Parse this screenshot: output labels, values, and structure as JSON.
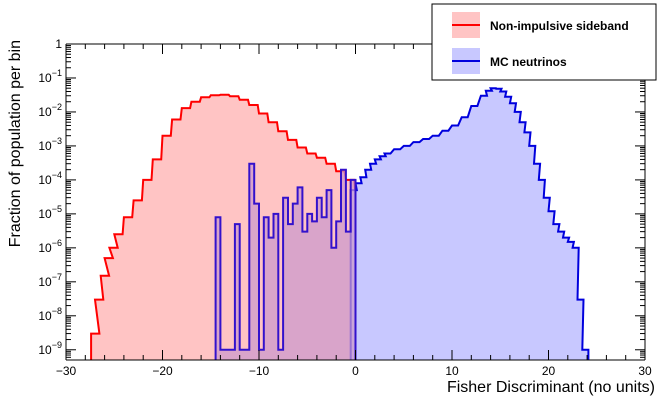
{
  "chart_data": {
    "type": "area",
    "xlabel": "Fisher Discriminant (no units)",
    "ylabel": "Fraction of population per bin",
    "xlim": [
      -30,
      30
    ],
    "ylim": [
      5e-10,
      1
    ],
    "yscale": "log",
    "x_ticks": [
      -30,
      -20,
      -10,
      0,
      10,
      20,
      30
    ],
    "x_tick_labels": [
      "−30",
      "−20",
      "−10",
      "0",
      "10",
      "20",
      "30"
    ],
    "y_ticks": [
      1e-09,
      1e-08,
      1e-07,
      1e-06,
      1e-05,
      0.0001,
      0.001,
      0.01,
      0.1,
      1
    ],
    "y_tick_labels": [
      {
        "base": "10",
        "exp": "−9"
      },
      {
        "base": "10",
        "exp": "−8"
      },
      {
        "base": "10",
        "exp": "−7"
      },
      {
        "base": "10",
        "exp": "−6"
      },
      {
        "base": "10",
        "exp": "−5"
      },
      {
        "base": "10",
        "exp": "−4"
      },
      {
        "base": "10",
        "exp": "−3"
      },
      {
        "base": "10",
        "exp": "−2"
      },
      {
        "base": "10",
        "exp": "−1"
      },
      {
        "base": "1",
        "exp": ""
      }
    ],
    "legend_position": "top-right",
    "series": [
      {
        "name": "Non-impulsive sideband",
        "color": "#ff0000",
        "fill": "#ffc4c4",
        "x": [
          -27.4,
          -27.0,
          -26.4,
          -26.0,
          -25.5,
          -25.0,
          -24.0,
          -23.0,
          -22.0,
          -21.0,
          -20.0,
          -19.0,
          -18.0,
          -17.0,
          -16.0,
          -15.0,
          -14.0,
          -13.0,
          -12.0,
          -11.0,
          -10.0,
          -9.0,
          -8.0,
          -7.0,
          -6.0,
          -5.0,
          -4.0,
          -3.0,
          -2.0,
          -1.0,
          0.0,
          1.0,
          2.0,
          3.0,
          4.0,
          4.5,
          5.0,
          5.5,
          6.0,
          6.2
        ],
        "y": [
          3e-09,
          3e-08,
          1.5e-07,
          5e-07,
          1e-06,
          2.5e-06,
          8e-06,
          2.5e-05,
          0.0001,
          0.0004,
          0.002,
          0.006,
          0.013,
          0.02,
          0.027,
          0.031,
          0.032,
          0.029,
          0.023,
          0.016,
          0.009,
          0.005,
          0.0027,
          0.0015,
          0.0009,
          0.0006,
          0.00045,
          0.0003,
          0.00018,
          0.0001,
          3.5e-05,
          8e-06,
          1.5e-06,
          3e-07,
          8e-08,
          4e-08,
          2e-08,
          1.2e-08,
          8e-09,
          8e-09
        ]
      },
      {
        "name": "MC neutrinos",
        "color": "#0000dd",
        "fill": "#c8c8ff",
        "x": [
          -0.5,
          0.0,
          0.5,
          1.0,
          1.5,
          2.0,
          2.5,
          3.0,
          4.0,
          5.0,
          6.0,
          7.0,
          8.0,
          9.0,
          10.0,
          11.0,
          12.0,
          13.0,
          13.5,
          14.0,
          14.5,
          15.0,
          15.5,
          16.0,
          16.5,
          17.0,
          17.5,
          18.0,
          18.5,
          19.0,
          19.5,
          20.0,
          20.5,
          21.0,
          21.5,
          22.0,
          22.5,
          23.0,
          23.5
        ],
        "y": [
          5e-05,
          8e-05,
          0.00012,
          0.0002,
          0.0003,
          0.0004,
          0.0005,
          0.0006,
          0.0008,
          0.001,
          0.0013,
          0.0016,
          0.002,
          0.0028,
          0.004,
          0.007,
          0.015,
          0.03,
          0.042,
          0.05,
          0.048,
          0.04,
          0.028,
          0.018,
          0.01,
          0.005,
          0.0025,
          0.001,
          0.0003,
          0.0001,
          3e-05,
          1.2e-05,
          5e-06,
          3e-06,
          2e-06,
          1.5e-06,
          1e-06,
          3e-08,
          1e-09
        ]
      },
      {
        "name": "",
        "color": "#3311cc",
        "fill": "#cc99cc",
        "x": [
          -14.5,
          -14.0,
          -13.5,
          -13.0,
          -12.5,
          -12.0,
          -11.5,
          -11.0,
          -10.5,
          -10.0,
          -9.5,
          -9.0,
          -8.5,
          -8.0,
          -7.5,
          -7.0,
          -6.5,
          -6.0,
          -5.5,
          -5.0,
          -4.5,
          -4.0,
          -3.5,
          -3.0,
          -2.5,
          -2.0,
          -1.5,
          -1.0,
          -0.5
        ],
        "y": [
          8e-06,
          1e-09,
          1e-09,
          1e-09,
          5e-06,
          1e-09,
          1e-09,
          0.0003,
          2e-05,
          1e-09,
          8e-06,
          2e-06,
          1e-05,
          1e-09,
          3e-05,
          5e-06,
          2e-05,
          6e-05,
          3e-06,
          1e-05,
          6e-06,
          3e-05,
          8e-06,
          5e-05,
          1e-06,
          6e-06,
          0.0002,
          3e-06,
          0.0001
        ]
      }
    ]
  }
}
